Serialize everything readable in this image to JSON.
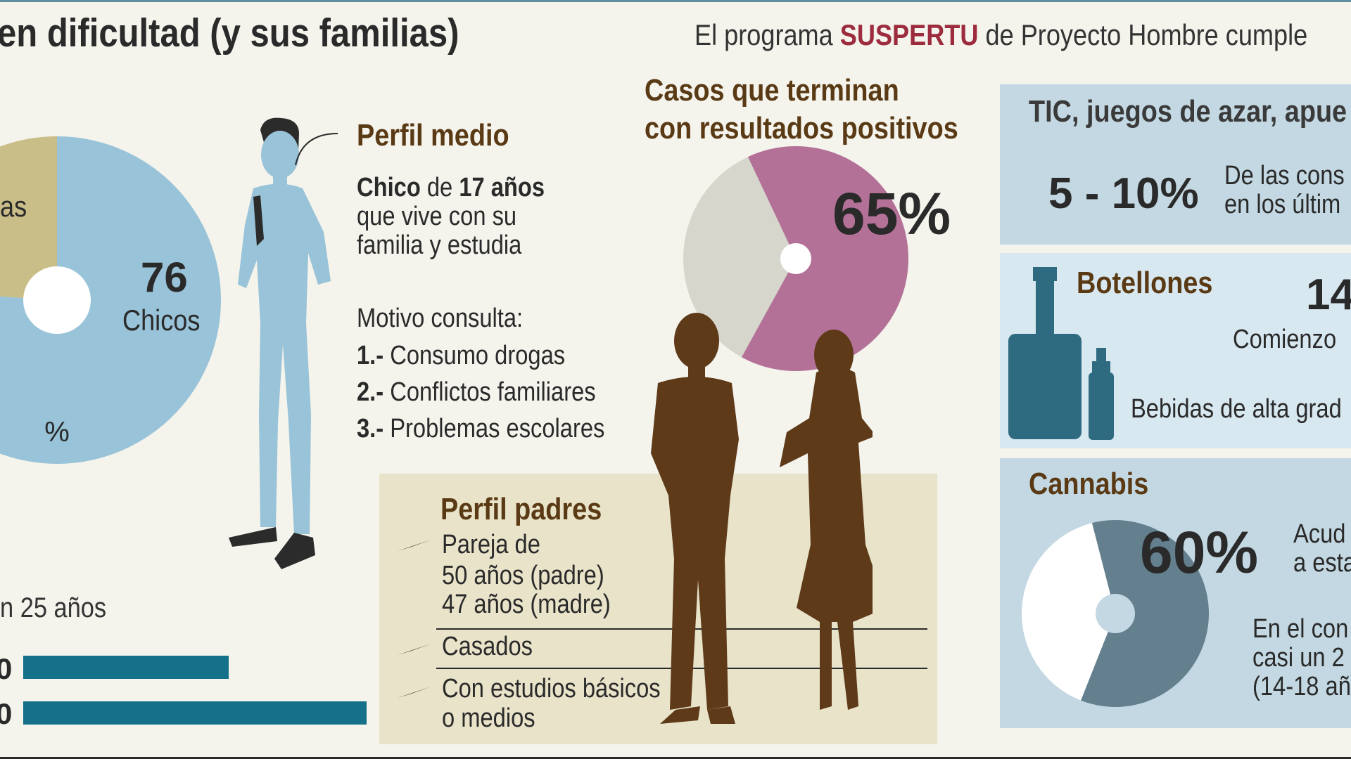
{
  "header": {
    "title": "en dificultad (y sus familias)",
    "subtitle_pre": "El programa",
    "subtitle_hl": "SUSPERTU",
    "subtitle_post": "de Proyecto Hombre cumple"
  },
  "colors": {
    "accent": "#9c2b3d",
    "brown": "#5a3a15",
    "pie_blue": "#98c3d8",
    "pie_khaki": "#c9bd88",
    "pie_pink": "#b37197",
    "pie_grey": "#d6d6cc",
    "bar": "#157089",
    "panel": "#c3d8e2"
  },
  "gender_pie": {
    "center_label": "%",
    "boys_value": "76",
    "boys_label": "Chicos",
    "girls_partial_label": "as"
  },
  "profile": {
    "heading": "Perfil medio",
    "line1_bold1": "Chico",
    "line1_mid": "de",
    "line1_bold2": "17 años",
    "line2": "que vive con su",
    "line3": "familia y estudia",
    "motivo_heading": "Motivo consulta:",
    "motivos": [
      {
        "num": "1.-",
        "text": "Consumo drogas"
      },
      {
        "num": "2.-",
        "text": "Conflictos familiares"
      },
      {
        "num": "3.-",
        "text": "Problemas escolares"
      }
    ]
  },
  "positive": {
    "heading_line1": "Casos que terminan",
    "heading_line2": "con resultados positivos",
    "value_label": "65%"
  },
  "ages": {
    "label_partial": "n 25 años",
    "bar1_partial": "0",
    "bar2_partial": "0"
  },
  "parents": {
    "heading": "Perfil padres",
    "item1_line1": "Pareja de",
    "item1_line2": "50 años (padre)",
    "item1_line3": "47 años (madre)",
    "item2": "Casados",
    "item3_line1": "Con estudios básicos",
    "item3_line2": "o medios"
  },
  "tic": {
    "heading": "TIC, juegos de azar, apue",
    "value": "5 - 10%",
    "text_line1": "De las cons",
    "text_line2": "en los últim"
  },
  "botellones": {
    "heading": "Botellones",
    "value_partial": "14",
    "text1": "Comienzo",
    "text2": "Bebidas de alta grad"
  },
  "cannabis": {
    "heading": "Cannabis",
    "value": "60%",
    "text_line1": "Acud",
    "text_line2": "a esta",
    "text_line3": "En el con",
    "text_line4": "casi un 2",
    "text_line5": "(14-18 añ"
  },
  "chart_data": [
    {
      "type": "pie",
      "title": "",
      "values": [
        76,
        24
      ],
      "labels": [
        "Chicos",
        ""
      ]
    },
    {
      "type": "pie",
      "title": "Casos que terminan con resultados positivos",
      "values": [
        65,
        35
      ],
      "labels": [
        "65%",
        ""
      ]
    },
    {
      "type": "pie",
      "title": "Cannabis",
      "values": [
        60,
        40
      ],
      "labels": [
        "60%",
        ""
      ]
    },
    {
      "type": "bar",
      "title": "",
      "orientation": "horizontal",
      "categories": [
        "0",
        "0"
      ],
      "values": [
        1,
        1.67
      ]
    }
  ]
}
